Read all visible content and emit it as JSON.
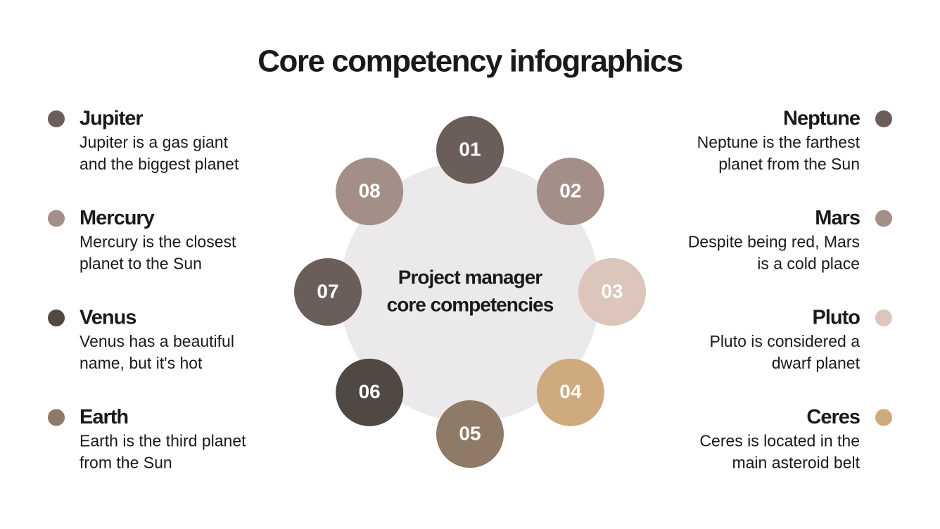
{
  "header": {
    "title": "Core competency infographics"
  },
  "center": {
    "lines": [
      "Project manager",
      "core competencies"
    ]
  },
  "nodes": [
    {
      "label": "01",
      "color": "#6b5d5a"
    },
    {
      "label": "02",
      "color": "#a48f88"
    },
    {
      "label": "03",
      "color": "#dcc5ba"
    },
    {
      "label": "04",
      "color": "#cfaa7e"
    },
    {
      "label": "05",
      "color": "#8e7a66"
    },
    {
      "label": "06",
      "color": "#4f4843"
    },
    {
      "label": "07",
      "color": "#6b5d5a"
    },
    {
      "label": "08",
      "color": "#a48f88"
    }
  ],
  "left_items": [
    {
      "title": "Jupiter",
      "lines": [
        "Jupiter is a gas giant",
        "and the biggest planet"
      ],
      "color": "#6b5d5a"
    },
    {
      "title": "Mercury",
      "lines": [
        "Mercury is the closest",
        "planet to the Sun"
      ],
      "color": "#a48f88"
    },
    {
      "title": "Venus",
      "lines": [
        "Venus has a beautiful",
        "name, but it's hot"
      ],
      "color": "#4f4843"
    },
    {
      "title": "Earth",
      "lines": [
        "Earth is the third planet",
        "from the Sun"
      ],
      "color": "#8e7a66"
    }
  ],
  "right_items": [
    {
      "title": "Neptune",
      "lines": [
        "Neptune is the farthest",
        "planet from the Sun"
      ],
      "color": "#6b5d5a"
    },
    {
      "title": "Mars",
      "lines": [
        "Despite being red, Mars",
        "is a cold place"
      ],
      "color": "#a48f88"
    },
    {
      "title": "Pluto",
      "lines": [
        "Pluto is considered a",
        "dwarf planet"
      ],
      "color": "#dcc5ba"
    },
    {
      "title": "Ceres",
      "lines": [
        "Ceres is located in the",
        "main asteroid belt"
      ],
      "color": "#cfaa7e"
    }
  ]
}
